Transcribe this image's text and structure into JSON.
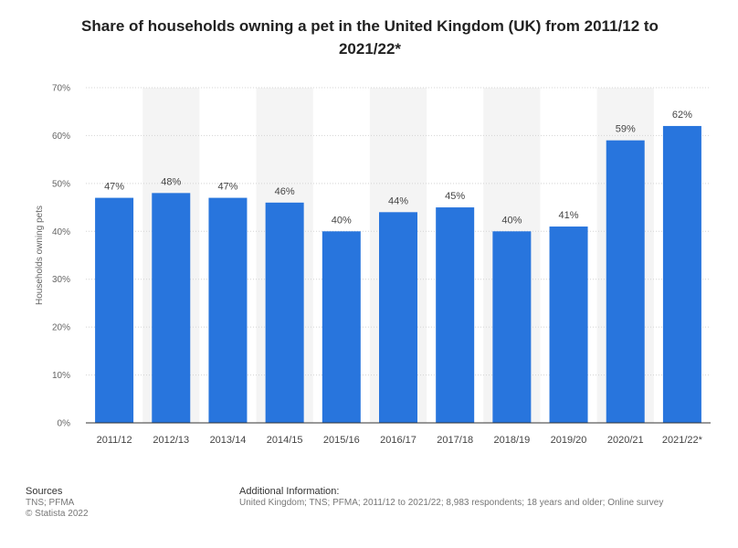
{
  "chart_data": {
    "type": "bar",
    "title": "Share of households owning a pet in the United Kingdom (UK) from 2011/12 to 2021/22*",
    "xlabel": "",
    "ylabel": "Households owning pets",
    "categories": [
      "2011/12",
      "2012/13",
      "2013/14",
      "2014/15",
      "2015/16",
      "2016/17",
      "2017/18",
      "2018/19",
      "2019/20",
      "2020/21",
      "2021/22*"
    ],
    "values": [
      47,
      48,
      47,
      46,
      40,
      44,
      45,
      40,
      41,
      59,
      62
    ],
    "data_labels": [
      "47%",
      "48%",
      "47%",
      "46%",
      "40%",
      "44%",
      "45%",
      "40%",
      "41%",
      "59%",
      "62%"
    ],
    "ylim": [
      0,
      70
    ],
    "yticks": [
      0,
      10,
      20,
      30,
      40,
      50,
      60,
      70
    ],
    "ytick_labels": [
      "0%",
      "10%",
      "20%",
      "30%",
      "40%",
      "50%",
      "60%",
      "70%"
    ],
    "grid": true,
    "bar_color": "#2875dd"
  },
  "footer": {
    "sources_heading": "Sources",
    "sources_line1": "TNS; PFMA",
    "sources_line2": "© Statista 2022",
    "additional_heading": "Additional Information:",
    "additional_text": "United Kingdom; TNS; PFMA; 2011/12 to 2021/22; 8,983 respondents; 18 years and older; Online survey"
  }
}
